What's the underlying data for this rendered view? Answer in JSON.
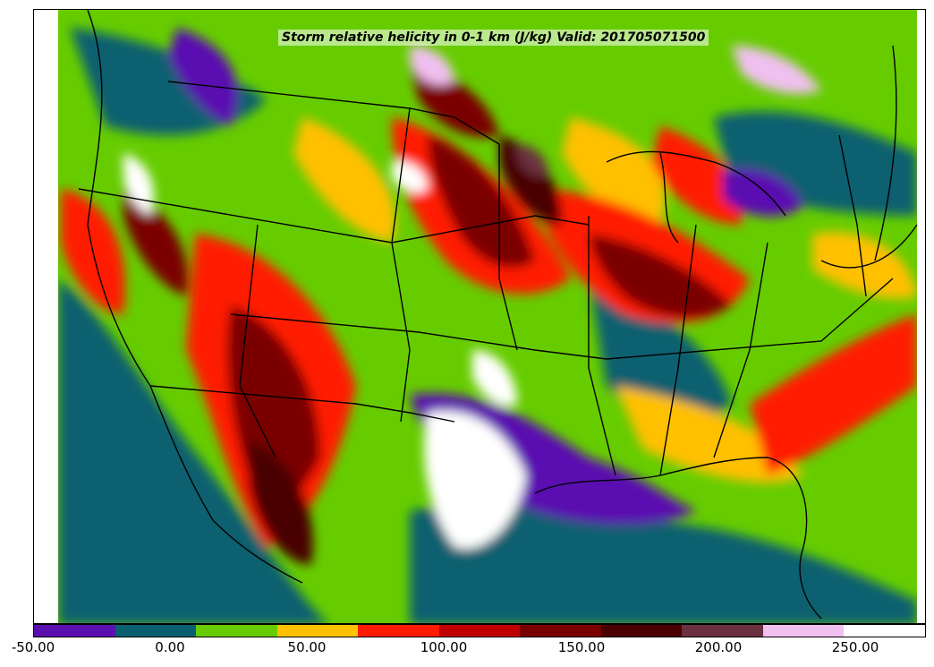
{
  "map": {
    "title": "Storm relative helicity in 0-1 km (J/kg) Valid: 201705071500"
  },
  "colorbar": {
    "colors": [
      "#5a10b0",
      "#0a6070",
      "#66cc00",
      "#ffc000",
      "#ff1a00",
      "#c00000",
      "#7a0000",
      "#4a0000",
      "#6a3040",
      "#f0c0f0",
      "#ffffff"
    ],
    "tick_labels": [
      "-50.00",
      "0.00",
      "50.00",
      "100.00",
      "150.00",
      "200.00",
      "250.00"
    ]
  }
}
